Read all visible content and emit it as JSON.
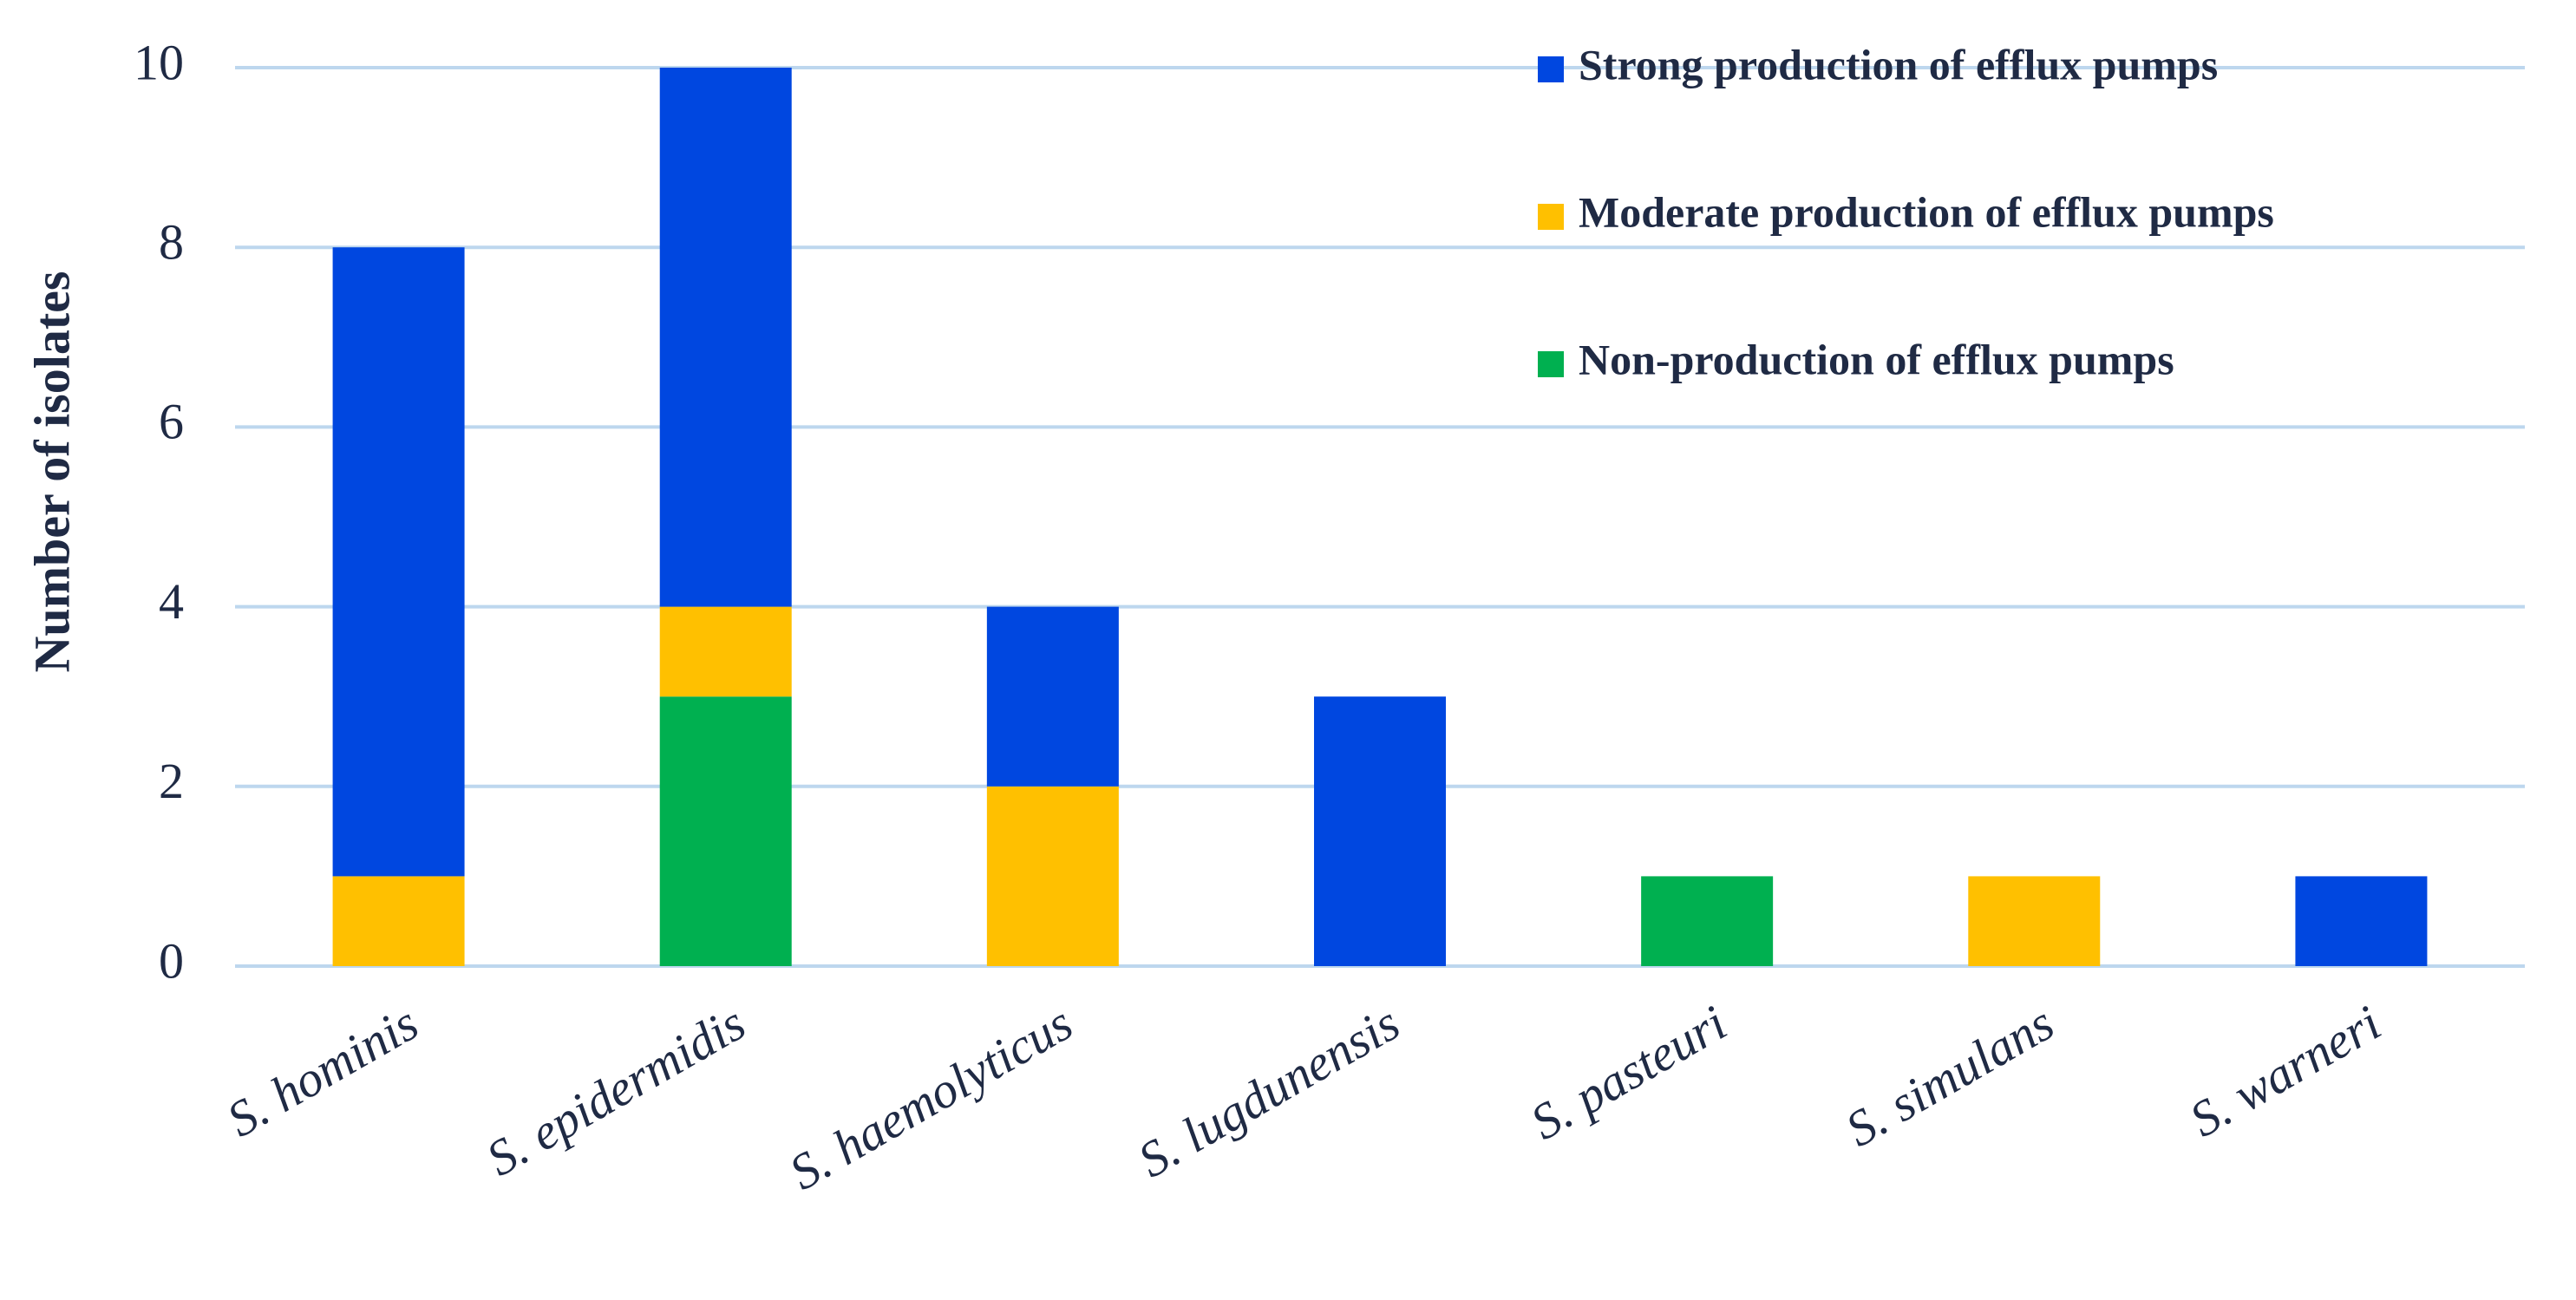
{
  "chart_data": {
    "type": "stacked-bar",
    "y_label": "Number of isolates",
    "categories": [
      "S. hominis",
      "S. epidermidis",
      "S. haemolyticus",
      "S. lugdunensis",
      "S. pasteuri",
      "S. simulans",
      "S. warneri"
    ],
    "series": [
      {
        "name": "Strong production of efflux pumps",
        "color": "#0047e0",
        "values": [
          7,
          6,
          2,
          3,
          0,
          0,
          1
        ]
      },
      {
        "name": "Moderate production of efflux pumps",
        "color": "#ffc000",
        "values": [
          1,
          1,
          2,
          0,
          0,
          1,
          0
        ]
      },
      {
        "name": "Non-production of efflux pumps",
        "color": "#00b050",
        "values": [
          0,
          3,
          0,
          0,
          1,
          0,
          0
        ]
      }
    ],
    "ylim": [
      0,
      10
    ],
    "yticks": [
      0,
      2,
      4,
      6,
      8,
      10
    ],
    "grid": true,
    "legend": "top-right"
  }
}
